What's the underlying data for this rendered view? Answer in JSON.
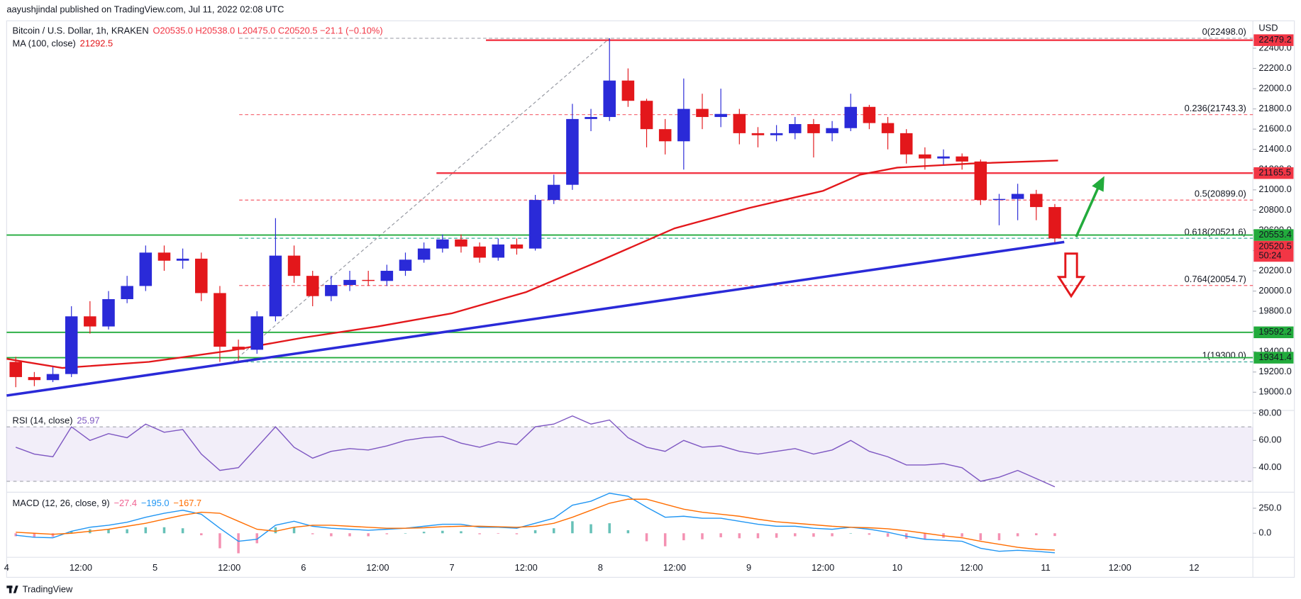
{
  "header": {
    "published": "aayushjindal published on TradingView.com, Jul 11, 2022 02:08 UTC"
  },
  "footer": {
    "brand": "TradingView"
  },
  "chart_data": [
    {
      "type": "candlestick",
      "title": "Bitcoin / U.S. Dollar, 1h, KRAKEN",
      "legend_values": [
        "O20535.0",
        "H20538.0",
        "L20475.0",
        "C20520.5",
        "−21.1 (−0.10%)"
      ],
      "y_axis_label": "USD",
      "up_color": "#2a2ad8",
      "down_color": "#e3171b",
      "x": [
        0,
        3,
        6,
        9,
        12,
        15,
        18,
        21,
        24,
        27,
        30,
        33,
        36,
        39,
        42,
        45,
        48,
        51,
        54,
        57,
        60,
        63,
        66,
        69,
        72,
        75,
        78,
        81,
        84,
        87,
        90,
        93,
        96,
        99,
        102,
        105,
        108,
        111,
        114,
        117,
        120,
        123,
        126,
        129,
        132,
        135,
        138,
        141,
        144,
        147,
        150,
        153,
        156,
        159,
        162,
        165,
        168
      ],
      "open": [
        19300,
        19150,
        19120,
        19180,
        19750,
        19650,
        19920,
        20050,
        20380,
        20300,
        20320,
        19980,
        19450,
        19420,
        19750,
        20350,
        20150,
        19950,
        20060,
        20110,
        20100,
        20200,
        20310,
        20420,
        20510,
        20440,
        20330,
        20460,
        20420,
        20900,
        21050,
        21700,
        21720,
        22080,
        21880,
        21600,
        21480,
        21800,
        21720,
        21750,
        21560,
        21540,
        21560,
        21650,
        21560,
        21610,
        21820,
        21660,
        21560,
        21350,
        21310,
        21330,
        21280,
        20900,
        20910,
        20960,
        20830
      ],
      "high": [
        19350,
        19200,
        19250,
        19850,
        19900,
        20000,
        20150,
        20450,
        20450,
        20420,
        20380,
        20050,
        19520,
        19800,
        20720,
        20450,
        20200,
        20150,
        20200,
        20200,
        20260,
        20380,
        20480,
        20560,
        20560,
        20480,
        20520,
        20520,
        20950,
        21150,
        21850,
        21800,
        22498,
        22200,
        21900,
        21700,
        22100,
        21950,
        22000,
        21800,
        21620,
        21640,
        21720,
        21700,
        21680,
        21950,
        21840,
        21720,
        21600,
        21420,
        21400,
        21360,
        21300,
        20960,
        21060,
        21000,
        20860
      ],
      "low": [
        19050,
        19060,
        19100,
        19150,
        19580,
        19620,
        19880,
        20000,
        20200,
        20220,
        19900,
        19300,
        19300,
        19380,
        19700,
        20080,
        19850,
        19900,
        20000,
        20050,
        20050,
        20150,
        20280,
        20380,
        20380,
        20280,
        20300,
        20360,
        20400,
        20860,
        21000,
        21580,
        21680,
        21820,
        21420,
        21350,
        21200,
        21600,
        21620,
        21450,
        21420,
        21480,
        21500,
        21320,
        21480,
        21580,
        21600,
        21400,
        21260,
        21200,
        21250,
        21200,
        20850,
        20650,
        20700,
        20700,
        20475
      ],
      "close": [
        19150,
        19120,
        19180,
        19750,
        19650,
        19920,
        20050,
        20380,
        20300,
        20320,
        19980,
        19450,
        19420,
        19750,
        20350,
        20150,
        19950,
        20060,
        20110,
        20100,
        20200,
        20310,
        20420,
        20510,
        20440,
        20330,
        20460,
        20420,
        20900,
        21050,
        21700,
        21720,
        22080,
        21880,
        21600,
        21480,
        21800,
        21720,
        21750,
        21560,
        21540,
        21560,
        21650,
        21560,
        21610,
        21820,
        21660,
        21560,
        21350,
        21310,
        21330,
        21280,
        20900,
        20910,
        20960,
        20830,
        20520
      ],
      "xlim": [
        0,
        201.5
      ],
      "ylim": [
        18820,
        22670
      ],
      "xticks": [
        {
          "value": 0,
          "label": "4"
        },
        {
          "value": 12,
          "label": "12:00"
        },
        {
          "value": 24,
          "label": "5"
        },
        {
          "value": 36,
          "label": "12:00"
        },
        {
          "value": 48,
          "label": "6"
        },
        {
          "value": 60,
          "label": "12:00"
        },
        {
          "value": 72,
          "label": "7"
        },
        {
          "value": 84,
          "label": "12:00"
        },
        {
          "value": 96,
          "label": "8"
        },
        {
          "value": 108,
          "label": "12:00"
        },
        {
          "value": 120,
          "label": "9"
        },
        {
          "value": 132,
          "label": "12:00"
        },
        {
          "value": 144,
          "label": "10"
        },
        {
          "value": 156,
          "label": "12:00"
        },
        {
          "value": 168,
          "label": "11"
        },
        {
          "value": 180,
          "label": "12:00"
        },
        {
          "value": 192,
          "label": "12"
        }
      ],
      "yticks": [
        {
          "value": 19000,
          "label": "19000.0"
        },
        {
          "value": 19200,
          "label": "19200.0"
        },
        {
          "value": 19400,
          "label": "19400.0"
        },
        {
          "value": 19600,
          "label": "19600.0"
        },
        {
          "value": 19800,
          "label": "19800.0"
        },
        {
          "value": 20000,
          "label": "20000.0"
        },
        {
          "value": 20200,
          "label": "20200.0"
        },
        {
          "value": 20400,
          "label": "20400.0"
        },
        {
          "value": 20600,
          "label": "20600.0"
        },
        {
          "value": 20800,
          "label": "20800.0"
        },
        {
          "value": 21000,
          "label": "21000.0"
        },
        {
          "value": 21200,
          "label": "21200.0"
        },
        {
          "value": 21400,
          "label": "21400.0"
        },
        {
          "value": 21600,
          "label": "21600.0"
        },
        {
          "value": 21800,
          "label": "21800.0"
        },
        {
          "value": 22000,
          "label": "22000.0"
        },
        {
          "value": 22200,
          "label": "22200.0"
        },
        {
          "value": 22400,
          "label": "22400.0"
        }
      ],
      "moving_average": {
        "name": "MA (100, close)",
        "value_label": "21292.5",
        "color": "#e3171b",
        "x": [
          0,
          9,
          23,
          36,
          48,
          60,
          72,
          84,
          96,
          108,
          120,
          132,
          138,
          144,
          156,
          170
        ],
        "values": [
          19330,
          19240,
          19300,
          19410,
          19540,
          19650,
          19780,
          19990,
          20300,
          20620,
          20820,
          20990,
          21150,
          21220,
          21260,
          21290
        ]
      },
      "trend_line": {
        "color": "#2a2ad8",
        "x": [
          0,
          171
        ],
        "values": [
          18967,
          20485
        ]
      },
      "levels": [
        {
          "value": 22479.2,
          "color": "#f23645",
          "x_start": 77.5
        },
        {
          "value": 21165.5,
          "color": "#f23645",
          "x_start": 69.5
        },
        {
          "value": 20553.4,
          "color": "#22ab3c",
          "x_start": 0
        },
        {
          "value": 19592.2,
          "color": "#22ab3c",
          "x_start": 0
        },
        {
          "value": 19341.4,
          "color": "#22ab3c",
          "x_start": 0
        }
      ],
      "fibonacci": {
        "x_start": 37.6,
        "anchors_x": [
          36.6,
          97.5
        ],
        "levels": [
          {
            "value": 22498.0,
            "label": "0(22498.0)",
            "color": "#9598a1"
          },
          {
            "value": 21743.3,
            "label": "0.236(21743.3)",
            "color": "#f23645"
          },
          {
            "value": 20899.0,
            "label": "0.5(20899.0)",
            "color": "#f23645"
          },
          {
            "value": 20521.6,
            "label": "0.618(20521.6)",
            "color": "#089981"
          },
          {
            "value": 20054.7,
            "label": "0.764(20054.7)",
            "color": "#f23645"
          },
          {
            "value": 19300.0,
            "label": "1(19300.0)",
            "color": "#089981"
          }
        ]
      },
      "last_price": {
        "value": 20520.5,
        "countdown": "50:24",
        "color": "#f23645"
      }
    },
    {
      "type": "line",
      "title": "RSI (14, close)",
      "value_label": "25.97",
      "color": "#7e57c2",
      "band": [
        30,
        70
      ],
      "x": [
        0,
        3,
        6,
        9,
        12,
        15,
        18,
        21,
        24,
        27,
        30,
        33,
        36,
        39,
        42,
        45,
        48,
        51,
        54,
        57,
        60,
        63,
        66,
        69,
        72,
        75,
        78,
        81,
        84,
        87,
        90,
        93,
        96,
        99,
        102,
        105,
        108,
        111,
        114,
        117,
        120,
        123,
        126,
        129,
        132,
        135,
        138,
        141,
        144,
        147,
        150,
        153,
        156,
        159,
        162,
        165,
        168
      ],
      "values": [
        55,
        50,
        48,
        70,
        60,
        65,
        62,
        72,
        66,
        68,
        50,
        38,
        40,
        55,
        70,
        55,
        47,
        52,
        54,
        53,
        56,
        60,
        62,
        63,
        58,
        55,
        59,
        57,
        70,
        72,
        78,
        72,
        75,
        62,
        55,
        52,
        60,
        55,
        56,
        52,
        50,
        52,
        54,
        50,
        53,
        60,
        52,
        48,
        42,
        42,
        43,
        40,
        30,
        33,
        38,
        32,
        25.97
      ],
      "ylim": [
        22,
        82
      ],
      "yticks": [
        {
          "value": 40,
          "label": "40.00"
        },
        {
          "value": 60,
          "label": "60.00"
        },
        {
          "value": 80,
          "label": "80.00"
        }
      ]
    },
    {
      "type": "macd",
      "title": "MACD (12, 26, close, 9)",
      "value_labels": [
        "−27.4",
        "−195.0",
        "−167.7"
      ],
      "x": [
        0,
        3,
        6,
        9,
        12,
        15,
        18,
        21,
        24,
        27,
        30,
        33,
        36,
        39,
        42,
        45,
        48,
        51,
        54,
        57,
        60,
        63,
        66,
        69,
        72,
        75,
        78,
        81,
        84,
        87,
        90,
        93,
        96,
        99,
        102,
        105,
        108,
        111,
        114,
        117,
        120,
        123,
        126,
        129,
        132,
        135,
        138,
        141,
        144,
        147,
        150,
        153,
        156,
        159,
        162,
        165,
        168
      ],
      "series": [
        {
          "name": "Histogram",
          "color": "#f06292",
          "up_color": "#26a69a",
          "values": [
            -30,
            -40,
            -35,
            20,
            40,
            40,
            40,
            60,
            60,
            50,
            -20,
            -150,
            -200,
            -100,
            60,
            60,
            -10,
            -30,
            -30,
            -30,
            -10,
            0,
            15,
            25,
            20,
            -10,
            -5,
            -10,
            30,
            50,
            120,
            90,
            100,
            30,
            -80,
            -130,
            -70,
            -60,
            -40,
            -50,
            -50,
            -45,
            -30,
            -35,
            -30,
            0,
            -15,
            -35,
            -55,
            -60,
            -45,
            -35,
            -70,
            -70,
            -30,
            -20,
            -27.4
          ]
        },
        {
          "name": "MACD",
          "color": "#2196f3",
          "values": [
            -20,
            -40,
            -45,
            20,
            60,
            80,
            110,
            160,
            200,
            230,
            190,
            50,
            -80,
            -60,
            80,
            120,
            70,
            50,
            40,
            30,
            40,
            50,
            70,
            90,
            90,
            60,
            60,
            50,
            100,
            150,
            280,
            320,
            400,
            370,
            260,
            160,
            170,
            150,
            150,
            120,
            90,
            70,
            70,
            50,
            40,
            60,
            40,
            10,
            -30,
            -60,
            -70,
            -80,
            -150,
            -180,
            -170,
            -180,
            -195
          ]
        },
        {
          "name": "Signal",
          "color": "#ff6d00",
          "values": [
            10,
            0,
            -10,
            0,
            20,
            40,
            70,
            100,
            140,
            180,
            210,
            200,
            120,
            40,
            20,
            60,
            80,
            80,
            70,
            60,
            50,
            50,
            55,
            65,
            70,
            70,
            65,
            60,
            70,
            100,
            160,
            230,
            300,
            340,
            340,
            290,
            240,
            210,
            190,
            170,
            140,
            115,
            100,
            85,
            70,
            60,
            55,
            45,
            25,
            0,
            -25,
            -45,
            -80,
            -110,
            -140,
            -160,
            -167.7
          ]
        }
      ],
      "ylim": [
        -240,
        410
      ],
      "yticks": [
        {
          "value": 0,
          "label": "0.0"
        },
        {
          "value": 250,
          "label": "250.0"
        }
      ]
    }
  ]
}
